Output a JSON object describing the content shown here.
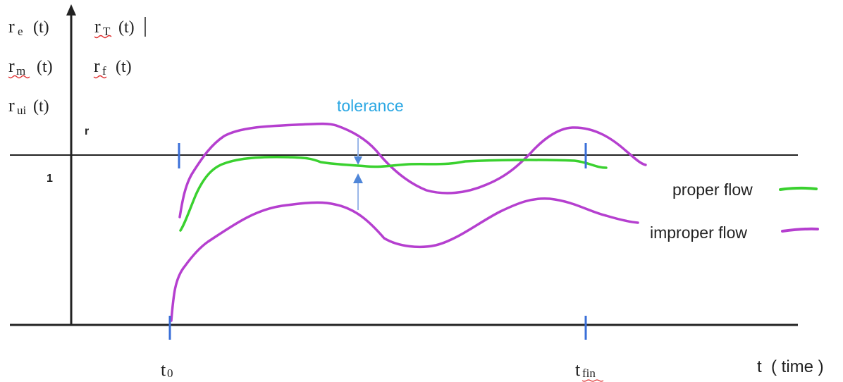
{
  "y_axis_labels": {
    "re": {
      "base": "r",
      "sub": "e",
      "arg": "(t)"
    },
    "rT": {
      "base": "r",
      "sub": "T",
      "arg": "(t)"
    },
    "rm": {
      "base": "r",
      "sub": "m",
      "arg": "(t)"
    },
    "rf": {
      "base": "r",
      "sub": "f",
      "arg": "(t)"
    },
    "rui": {
      "base": "r",
      "sub": "ui",
      "arg": "(t)"
    },
    "r_marker": "r",
    "level_one": "1"
  },
  "tolerance_label": "tolerance",
  "legend": {
    "proper": "proper flow",
    "improper": "improper flow"
  },
  "x_axis": {
    "t0": {
      "base": "t",
      "sub": "0"
    },
    "tfin": {
      "base": "t",
      "sub": "fin"
    },
    "time_label": "t  ( time )"
  },
  "colors": {
    "axis": "#222222",
    "proper_flow": "#3ad12f",
    "improper_flow": "#b53fcf",
    "markers": "#3a6fd8",
    "tolerance_text": "#2aa7e3",
    "tolerance_arrow": "#4f86d8",
    "spell_underline": "#e03030"
  }
}
